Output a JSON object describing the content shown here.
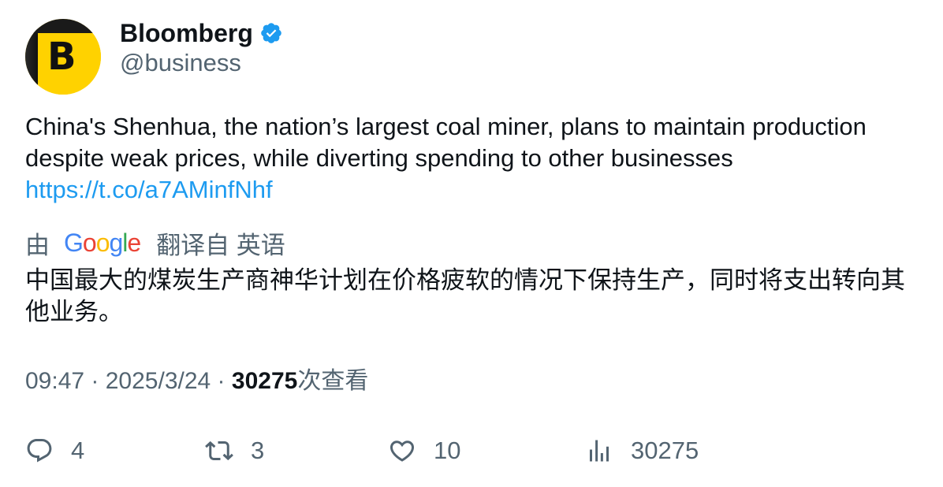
{
  "author": {
    "display_name": "Bloomberg",
    "handle": "@business",
    "avatar_letter": "B",
    "verified": true,
    "avatar_color": "#ffd200"
  },
  "tweet": {
    "text": "China's Shenhua, the nation’s largest coal miner, plans to maintain production despite weak prices, while diverting spending to other businesses",
    "link": "https://t.co/a7AMinfNhf"
  },
  "translation": {
    "by_label": "由",
    "provider": "Google",
    "from_label": "翻译自 英语",
    "text": "中国最大的煤炭生产商神华计划在价格疲软的情况下保持生产，同时将支出转向其他业务。"
  },
  "meta": {
    "time": "09:47",
    "separator": " · ",
    "date": "2025/3/24",
    "views_count": "30275",
    "views_label": "次查看"
  },
  "actions": {
    "replies": "4",
    "retweets": "3",
    "likes": "10",
    "views": "30275"
  },
  "colors": {
    "link": "#1d9bf0",
    "secondary_text": "#536471",
    "primary_text": "#0f1419",
    "verified_badge": "#1d9bf0"
  },
  "icons": {
    "verified": "verified-badge-icon",
    "reply": "reply-icon",
    "retweet": "retweet-icon",
    "like": "heart-icon",
    "views": "views-chart-icon"
  }
}
